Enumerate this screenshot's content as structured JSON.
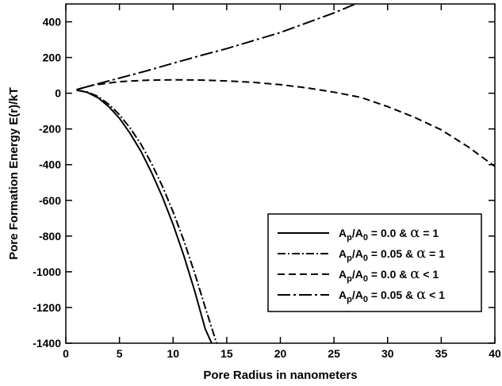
{
  "chart_data": {
    "type": "line",
    "title": "",
    "xlabel": "Pore Radius in nanometers",
    "ylabel": "Pore Formation Energy E(r)/kT",
    "xlim": [
      0,
      40
    ],
    "ylim": [
      -1400,
      500
    ],
    "xticks": [
      0,
      5,
      10,
      15,
      20,
      25,
      30,
      35,
      40
    ],
    "yticks": [
      -1400,
      -1200,
      -1000,
      -800,
      -600,
      -400,
      -200,
      0,
      200,
      400
    ],
    "grid": false,
    "legend_position": "lower-right",
    "series": [
      {
        "name": "A_p/A_0 = 0.0 & α = 1",
        "legend_parts": [
          "A",
          "p",
          "/A",
          "0",
          " = 0.0 & ",
          "α",
          " = 1"
        ],
        "style": "solid",
        "x": [
          1,
          2,
          3,
          4,
          5,
          6,
          7,
          8,
          9,
          10,
          11,
          12,
          13,
          13.6
        ],
        "y": [
          18,
          5,
          -25,
          -75,
          -140,
          -225,
          -325,
          -445,
          -580,
          -735,
          -910,
          -1105,
          -1320,
          -1400
        ]
      },
      {
        "name": "A_p/A_0 = 0.05 & α = 1",
        "legend_parts": [
          "A",
          "p",
          "/A",
          "0",
          " = 0.05 & ",
          "α",
          " = 1"
        ],
        "style": "dash-dot",
        "x": [
          1,
          2,
          3,
          4,
          5,
          6,
          7,
          8,
          9,
          10,
          11,
          12,
          13,
          14,
          14.1
        ],
        "y": [
          18,
          7,
          -18,
          -62,
          -120,
          -195,
          -285,
          -395,
          -520,
          -665,
          -825,
          -1005,
          -1200,
          -1390,
          -1400
        ]
      },
      {
        "name": "A_p/A_0 = 0.0 & α < 1",
        "legend_parts": [
          "A",
          "p",
          "/A",
          "0",
          " = 0.0 & ",
          "α",
          " < 1"
        ],
        "style": "dashed",
        "x": [
          1,
          2.5,
          5,
          7.5,
          10,
          12.5,
          15,
          17.5,
          20,
          22.5,
          25,
          27.5,
          30,
          32.5,
          35,
          37.5,
          40
        ],
        "y": [
          20,
          45,
          65,
          73,
          75,
          74,
          69,
          61,
          48,
          30,
          6,
          -23,
          -75,
          -135,
          -205,
          -300,
          -410
        ]
      },
      {
        "name": "A_p/A_0 = 0.05 & α < 1",
        "legend_parts": [
          "A",
          "p",
          "/A",
          "0",
          " = 0.05 & ",
          "α",
          " < 1"
        ],
        "style": "dash-dot-long",
        "x": [
          1,
          2.5,
          5,
          7.5,
          10,
          12.5,
          15,
          17.5,
          20,
          22.5,
          25,
          27
        ],
        "y": [
          20,
          45,
          85,
          125,
          168,
          210,
          250,
          295,
          340,
          395,
          450,
          500
        ]
      }
    ]
  }
}
